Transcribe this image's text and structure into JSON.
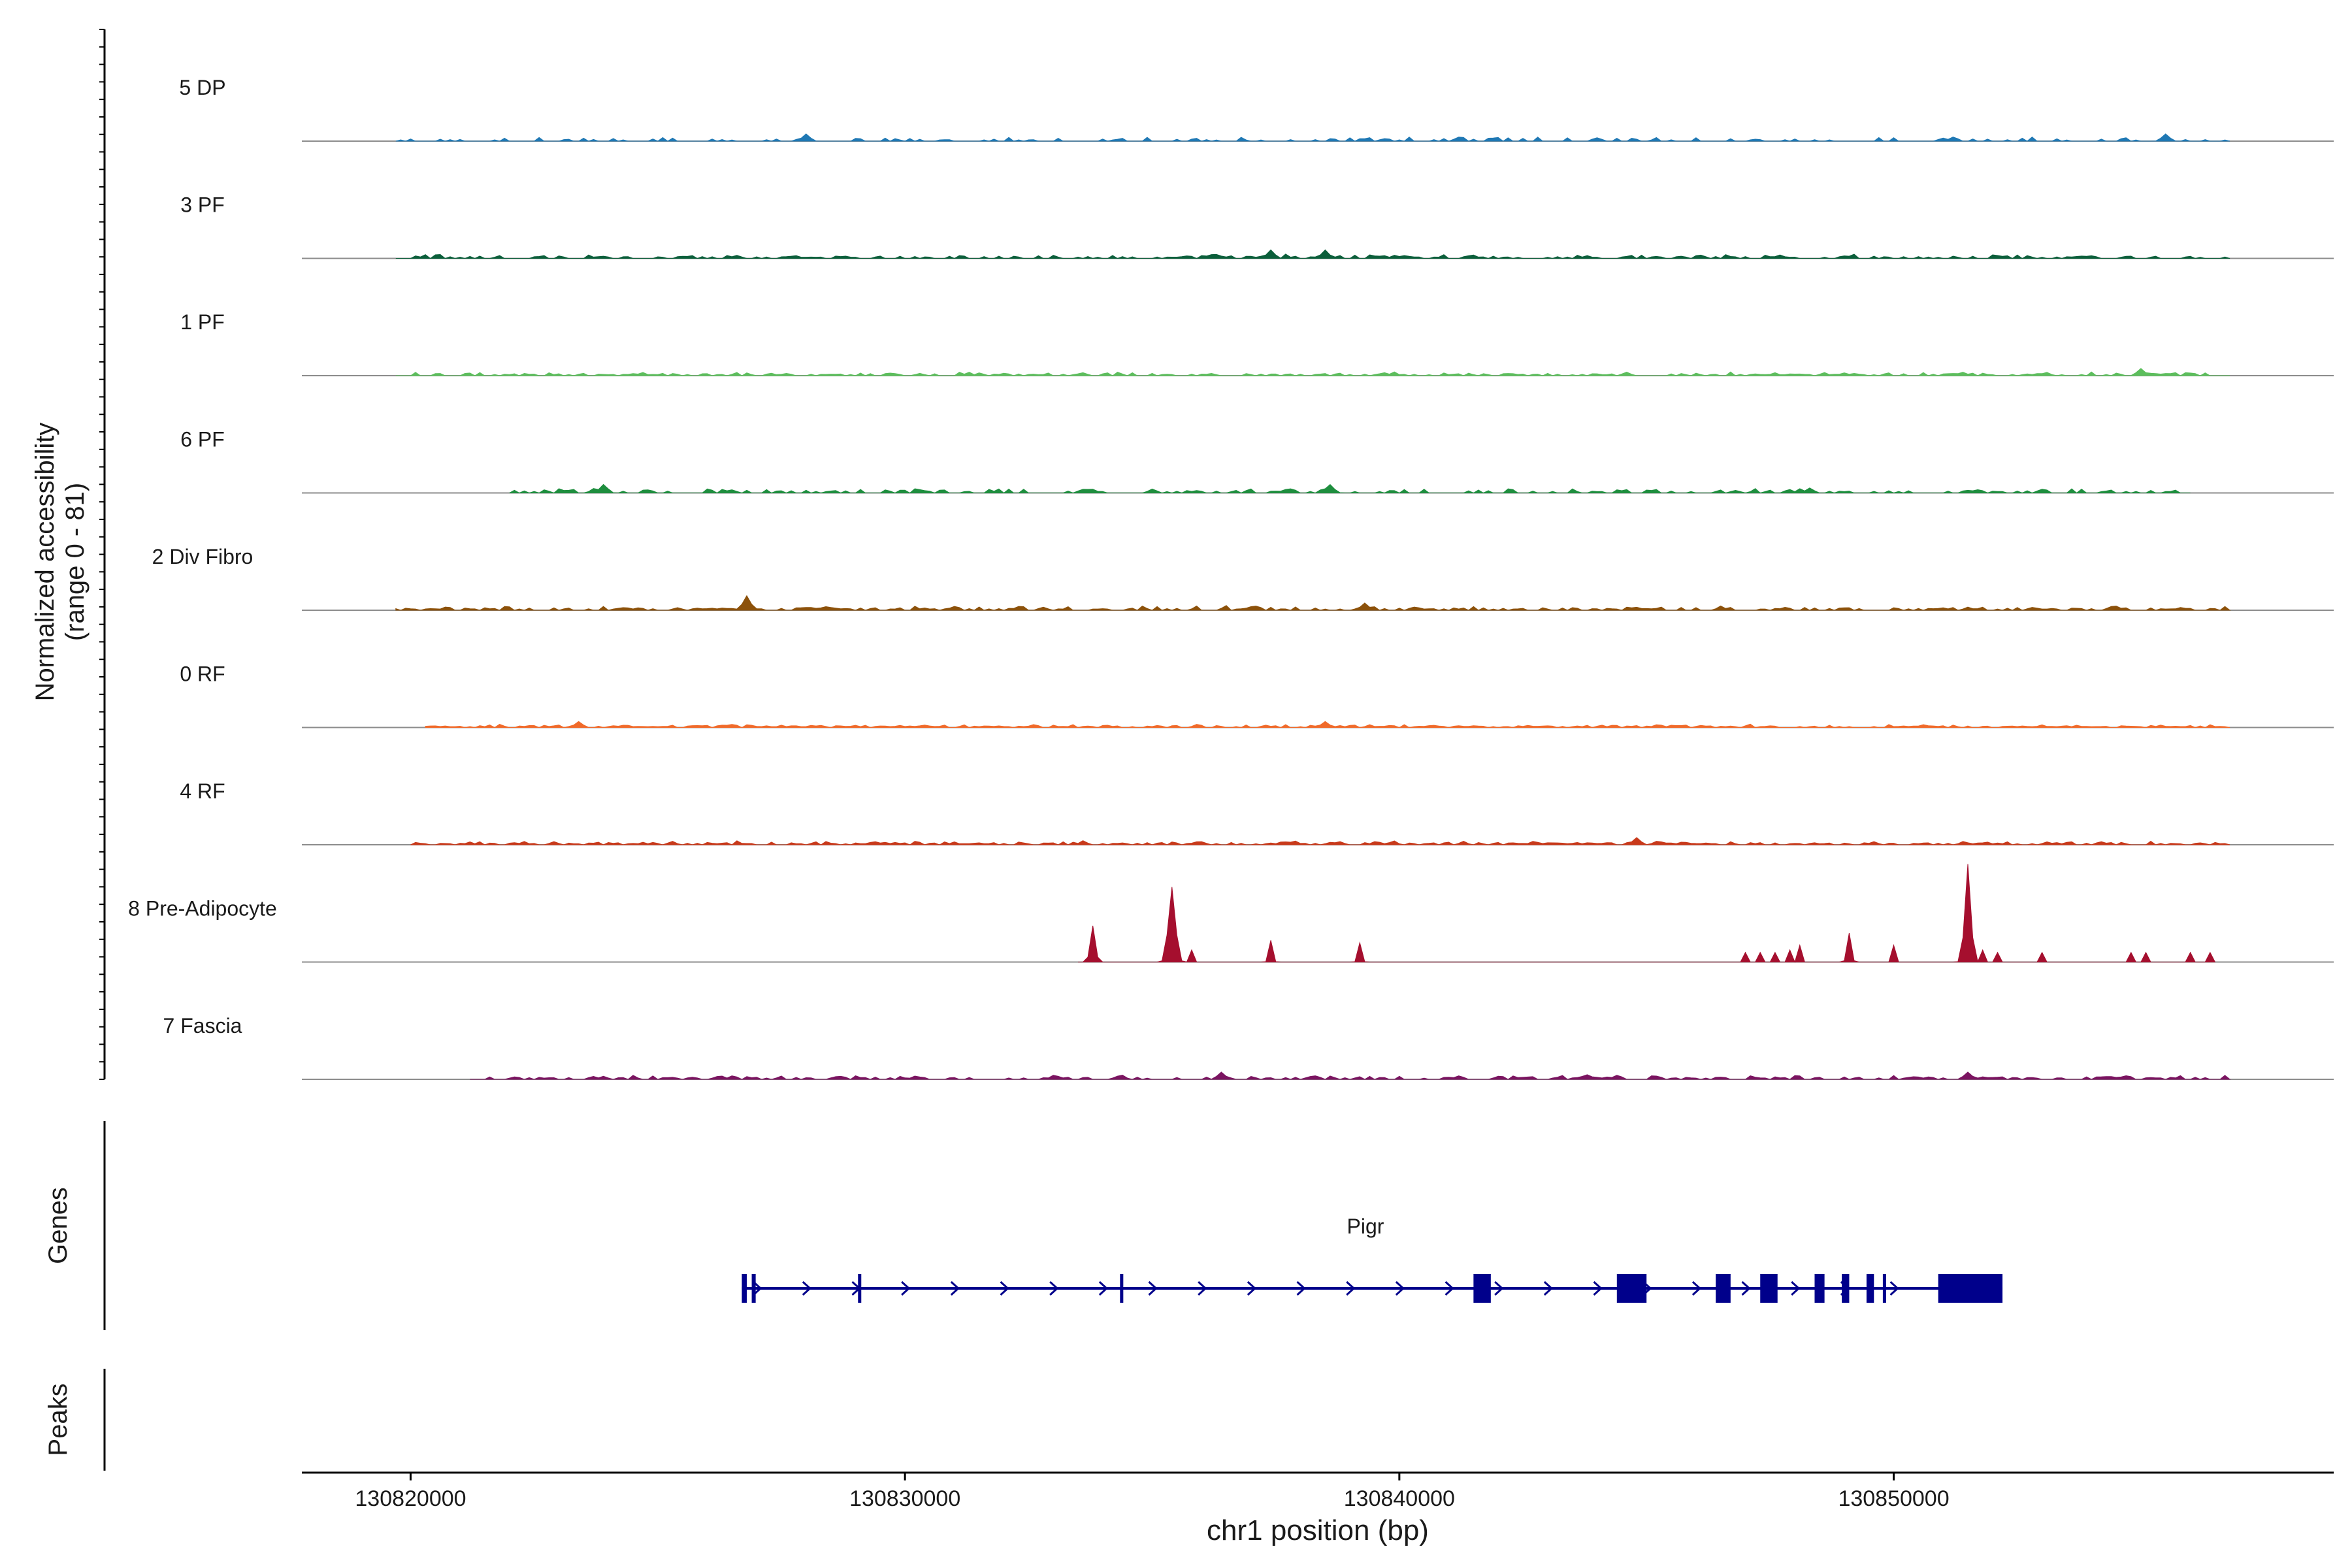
{
  "chart_data": {
    "type": "area",
    "title": "",
    "ylabel_line1": "Normalized accessibility",
    "ylabel_line2": "(range 0 - 81)",
    "yrange": [
      0,
      81
    ],
    "xlabel": "chr1 position (bp)",
    "xlim": [
      130817800,
      130858900
    ],
    "xticks": [
      130820000,
      130830000,
      130840000,
      130850000
    ],
    "xtick_labels": [
      "130820000",
      "130830000",
      "130840000",
      "130850000"
    ],
    "tracks": [
      {
        "name": "5 DP",
        "color": "#1F78B4",
        "start": 130819700,
        "end": 130856800,
        "seed": 11,
        "density": 0.32,
        "amp": 4,
        "peaks": [
          {
            "pos": 130828000,
            "h": 6
          },
          {
            "pos": 130855500,
            "h": 6
          }
        ]
      },
      {
        "name": "3 PF",
        "color": "#0B5E3A",
        "start": 130819700,
        "end": 130856800,
        "seed": 23,
        "density": 0.55,
        "amp": 4,
        "peaks": [
          {
            "pos": 130837400,
            "h": 7
          },
          {
            "pos": 130838500,
            "h": 7
          }
        ]
      },
      {
        "name": "1 PF",
        "color": "#5CBE5C",
        "start": 130819700,
        "end": 130856800,
        "seed": 37,
        "density": 0.6,
        "amp": 3.5,
        "peaks": [
          {
            "pos": 130855000,
            "h": 6
          }
        ]
      },
      {
        "name": "6 PF",
        "color": "#1E8E3E",
        "start": 130822000,
        "end": 130856000,
        "seed": 41,
        "density": 0.5,
        "amp": 4.5,
        "peaks": [
          {
            "pos": 130823900,
            "h": 7
          },
          {
            "pos": 130838600,
            "h": 7
          }
        ]
      },
      {
        "name": "2 Div Fibro",
        "color": "#8C510A",
        "start": 130819700,
        "end": 130856800,
        "seed": 53,
        "density": 0.6,
        "amp": 4,
        "peaks": [
          {
            "pos": 130826800,
            "h": 12
          },
          {
            "pos": 130839300,
            "h": 6
          }
        ]
      },
      {
        "name": "0 RF",
        "color": "#F06A2A",
        "start": 130820300,
        "end": 130856800,
        "seed": 67,
        "density": 0.75,
        "amp": 3,
        "peaks": [
          {
            "pos": 130823400,
            "h": 5
          },
          {
            "pos": 130838500,
            "h": 5
          }
        ]
      },
      {
        "name": "4 RF",
        "color": "#C8391A",
        "start": 130820000,
        "end": 130856800,
        "seed": 79,
        "density": 0.7,
        "amp": 3.5,
        "peaks": [
          {
            "pos": 130844800,
            "h": 6
          }
        ]
      },
      {
        "name": "8 Pre-Adipocyte",
        "color": "#A50F2E",
        "start": 130833500,
        "end": 130856500,
        "seed": 0,
        "density": 0,
        "amp": 0,
        "peaks": [
          {
            "pos": 130833800,
            "h": 30,
            "w": 100
          },
          {
            "pos": 130835400,
            "h": 62,
            "w": 140
          },
          {
            "pos": 130835800,
            "h": 10,
            "w": 60
          },
          {
            "pos": 130837400,
            "h": 18,
            "w": 70
          },
          {
            "pos": 130839200,
            "h": 16,
            "w": 70
          },
          {
            "pos": 130847000,
            "h": 8,
            "w": 40
          },
          {
            "pos": 130847300,
            "h": 8,
            "w": 40
          },
          {
            "pos": 130847600,
            "h": 8,
            "w": 40
          },
          {
            "pos": 130847900,
            "h": 10,
            "w": 40
          },
          {
            "pos": 130848100,
            "h": 14,
            "w": 50
          },
          {
            "pos": 130849100,
            "h": 24,
            "w": 80
          },
          {
            "pos": 130850000,
            "h": 14,
            "w": 60
          },
          {
            "pos": 130851500,
            "h": 81,
            "w": 120
          },
          {
            "pos": 130851800,
            "h": 10,
            "w": 50
          },
          {
            "pos": 130852100,
            "h": 8,
            "w": 40
          },
          {
            "pos": 130853000,
            "h": 8,
            "w": 50
          },
          {
            "pos": 130854800,
            "h": 8,
            "w": 50
          },
          {
            "pos": 130855100,
            "h": 8,
            "w": 40
          },
          {
            "pos": 130856000,
            "h": 8,
            "w": 40
          },
          {
            "pos": 130856400,
            "h": 8,
            "w": 40
          }
        ]
      },
      {
        "name": "7 Fascia",
        "color": "#7B1461",
        "start": 130821200,
        "end": 130856800,
        "seed": 97,
        "density": 0.55,
        "amp": 4,
        "peaks": [
          {
            "pos": 130851500,
            "h": 6
          },
          {
            "pos": 130836400,
            "h": 6
          }
        ]
      }
    ],
    "genes_label": "Genes",
    "peaks_label": "Peaks",
    "gene": {
      "name": "Pigr",
      "color": "#00008B",
      "start": 130826700,
      "end": 130852200,
      "strand": "+",
      "exons": [
        [
          130826700,
          130826800
        ],
        [
          130826900,
          130826980
        ],
        [
          130829050,
          130829110
        ],
        [
          130834350,
          130834410
        ],
        [
          130841500,
          130841850
        ],
        [
          130844400,
          130845000
        ],
        [
          130846400,
          130846700
        ],
        [
          130847300,
          130847650
        ],
        [
          130848400,
          130848600
        ],
        [
          130848950,
          130849100
        ],
        [
          130849450,
          130849600
        ],
        [
          130849780,
          130849820
        ],
        [
          130850900,
          130852200
        ]
      ]
    }
  }
}
